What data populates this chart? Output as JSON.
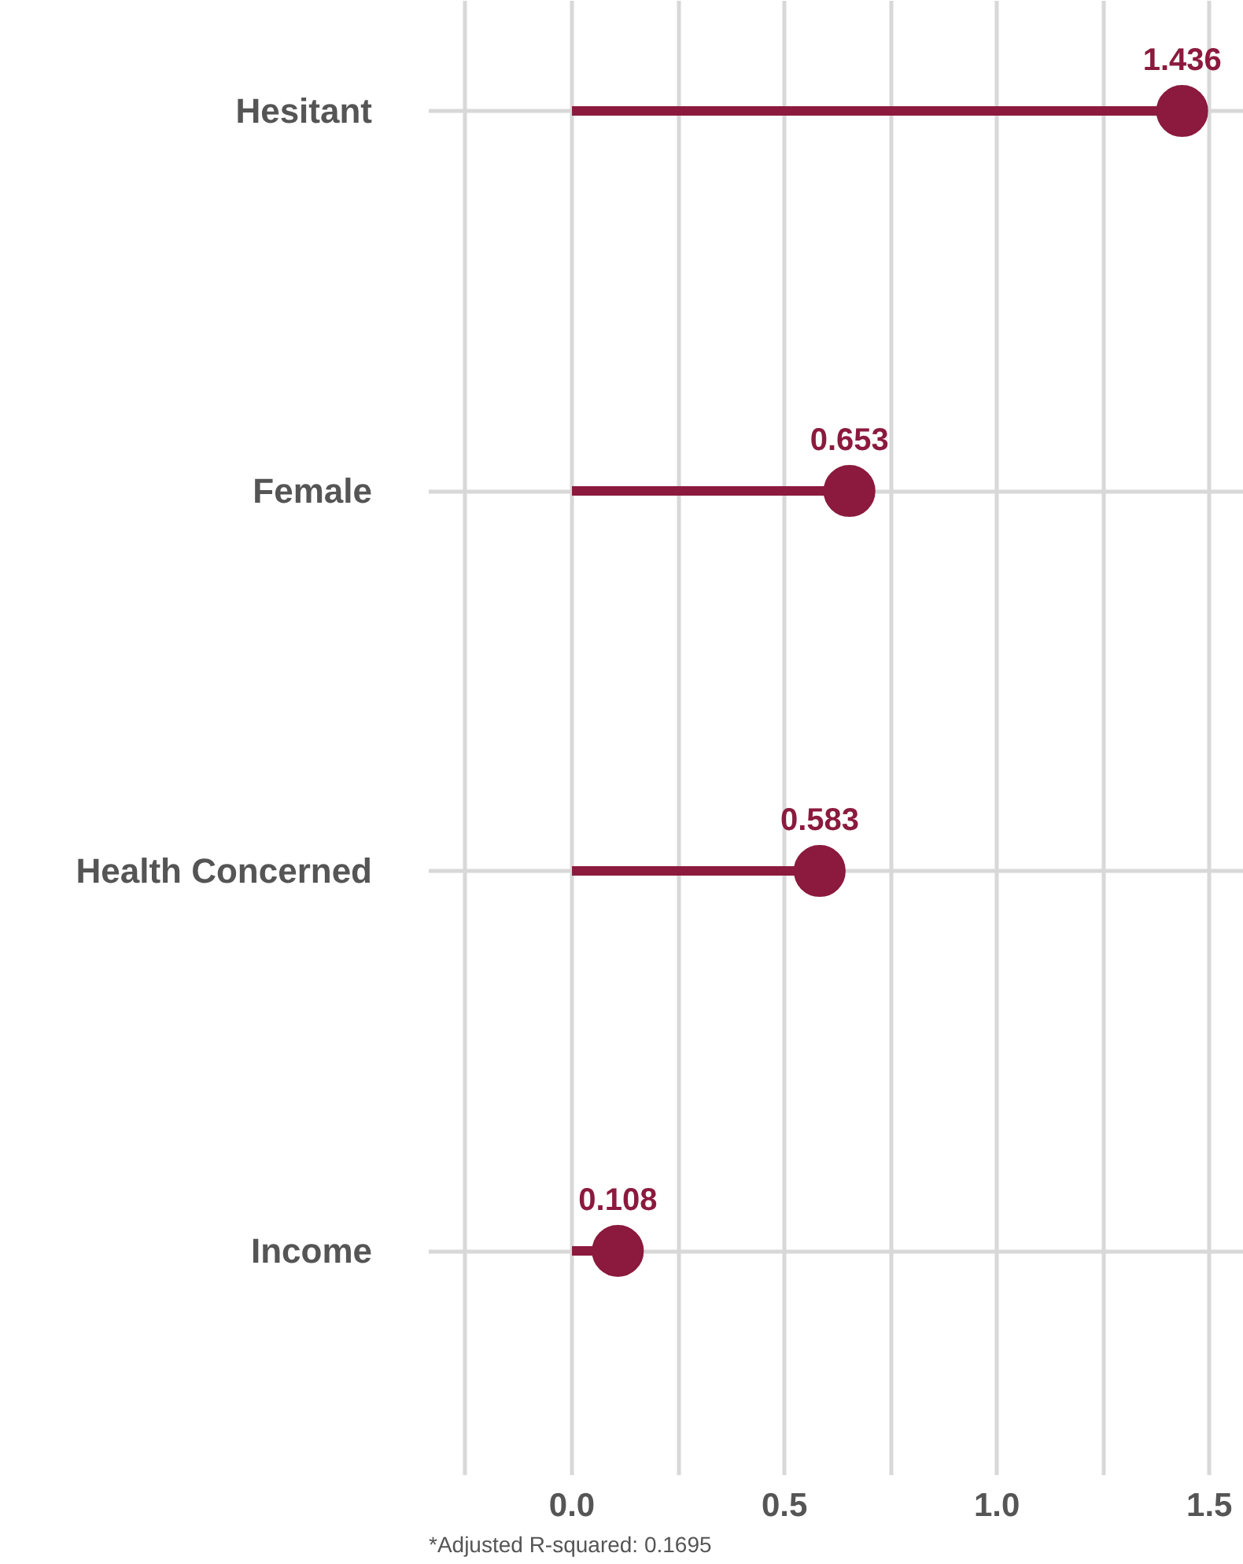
{
  "chart_data": {
    "type": "lollipop",
    "orientation": "horizontal",
    "categories": [
      "Hesitant",
      "Female",
      "Health Concerned",
      "Income"
    ],
    "values": [
      1.436,
      0.653,
      0.583,
      0.108
    ],
    "color": "#8b1a3e",
    "marker": "circle",
    "data_labels": true,
    "grid": true,
    "xlim": [
      -0.337,
      1.581
    ],
    "xticks": [
      {
        "value": -0.25,
        "label": null
      },
      {
        "value": 0,
        "label": "0.0"
      },
      {
        "value": 0.25,
        "label": null
      },
      {
        "value": 0.5,
        "label": "0.5"
      },
      {
        "value": 0.75,
        "label": null
      },
      {
        "value": 1,
        "label": "1.0"
      },
      {
        "value": 1.25,
        "label": null
      },
      {
        "value": 1.5,
        "label": "1.5"
      }
    ],
    "annotations": [
      "*Adjusted R-squared: 0.1695"
    ]
  }
}
